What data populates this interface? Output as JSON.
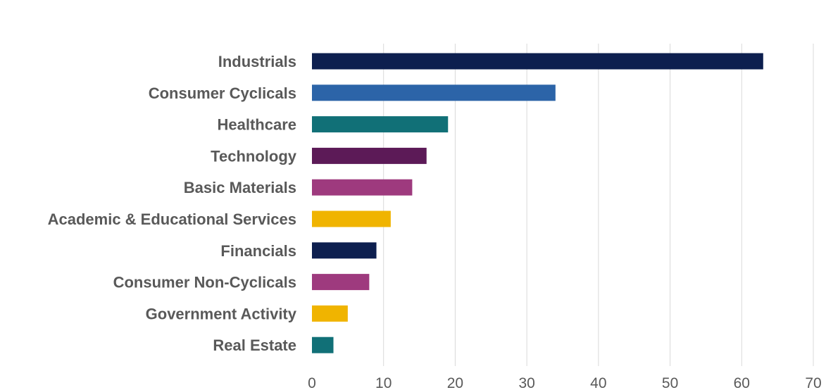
{
  "chart_data": {
    "type": "bar",
    "orientation": "horizontal",
    "categories": [
      "Industrials",
      "Consumer Cyclicals",
      "Healthcare",
      "Technology",
      "Basic Materials",
      "Academic & Educational Services",
      "Financials",
      "Consumer Non-Cyclicals",
      "Government Activity",
      "Real Estate"
    ],
    "values": [
      63,
      34,
      19,
      16,
      14,
      11,
      9,
      8,
      5,
      3
    ],
    "colors": [
      "#0d1f4f",
      "#2c64a8",
      "#117077",
      "#5c1a57",
      "#9e3a7e",
      "#f0b400",
      "#0d1f4f",
      "#9e3a7e",
      "#f0b400",
      "#117077"
    ],
    "xlim": [
      0,
      70
    ],
    "xticks": [
      "0",
      "10",
      "20",
      "30",
      "40",
      "50",
      "60",
      "70"
    ],
    "grid": true,
    "title": "",
    "xlabel": "",
    "ylabel": ""
  }
}
